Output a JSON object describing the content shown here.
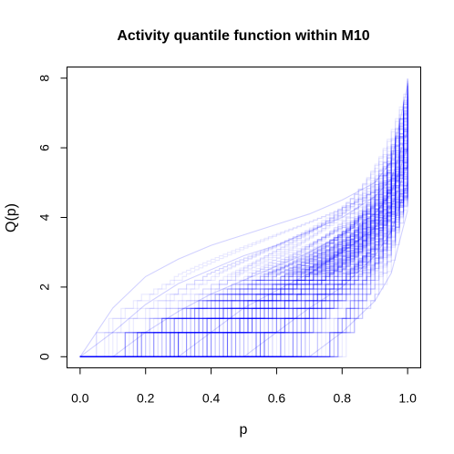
{
  "chart_data": {
    "type": "line",
    "title": "Activity quantile function within M10",
    "xlabel": "p",
    "ylabel": "Q(p)",
    "xlim": [
      -0.04,
      1.04
    ],
    "ylim": [
      -0.32,
      8.32
    ],
    "x_ticks": [
      0.0,
      0.2,
      0.4,
      0.6,
      0.8,
      1.0
    ],
    "x_tick_labels": [
      "0.0",
      "0.2",
      "0.4",
      "0.6",
      "0.8",
      "1.0"
    ],
    "y_ticks": [
      0,
      2,
      4,
      6,
      8
    ],
    "y_tick_labels": [
      "0",
      "2",
      "4",
      "6",
      "8"
    ],
    "grid": false,
    "legend": "none",
    "line_color": "#0000ff",
    "line_opacity": 0.09,
    "representative_curves": [
      {
        "x": [
          0,
          0.1,
          0.2,
          0.3,
          0.4,
          0.5,
          0.6,
          0.7,
          0.8,
          0.9,
          0.95,
          1.0
        ],
        "y": [
          0,
          1.4,
          2.3,
          2.8,
          3.2,
          3.5,
          3.8,
          4.1,
          4.5,
          5.0,
          5.6,
          7.8
        ]
      },
      {
        "x": [
          0,
          0.1,
          0.2,
          0.3,
          0.4,
          0.5,
          0.6,
          0.7,
          0.8,
          0.9,
          0.95,
          1.0
        ],
        "y": [
          0,
          0.7,
          1.5,
          2.1,
          2.5,
          2.9,
          3.2,
          3.6,
          4.0,
          4.6,
          5.1,
          6.5
        ]
      },
      {
        "x": [
          0,
          0.1,
          0.2,
          0.3,
          0.4,
          0.5,
          0.6,
          0.7,
          0.8,
          0.9,
          0.95,
          1.0
        ],
        "y": [
          0,
          0,
          0.7,
          1.3,
          1.8,
          2.2,
          2.6,
          3.0,
          3.5,
          4.1,
          4.7,
          6.0
        ]
      },
      {
        "x": [
          0,
          0.2,
          0.3,
          0.4,
          0.5,
          0.6,
          0.7,
          0.8,
          0.9,
          0.95,
          1.0
        ],
        "y": [
          0,
          0,
          0,
          0.7,
          1.4,
          1.9,
          2.4,
          3.0,
          3.7,
          4.3,
          5.5
        ]
      },
      {
        "x": [
          0,
          0.4,
          0.5,
          0.6,
          0.7,
          0.8,
          0.9,
          0.95,
          1.0
        ],
        "y": [
          0,
          0,
          0,
          0.7,
          1.4,
          2.0,
          2.9,
          3.6,
          5.0
        ]
      },
      {
        "x": [
          0,
          0.7,
          0.8,
          0.9,
          0.95,
          1.0
        ],
        "y": [
          0,
          0,
          0.7,
          1.6,
          2.4,
          4.2
        ]
      }
    ]
  }
}
